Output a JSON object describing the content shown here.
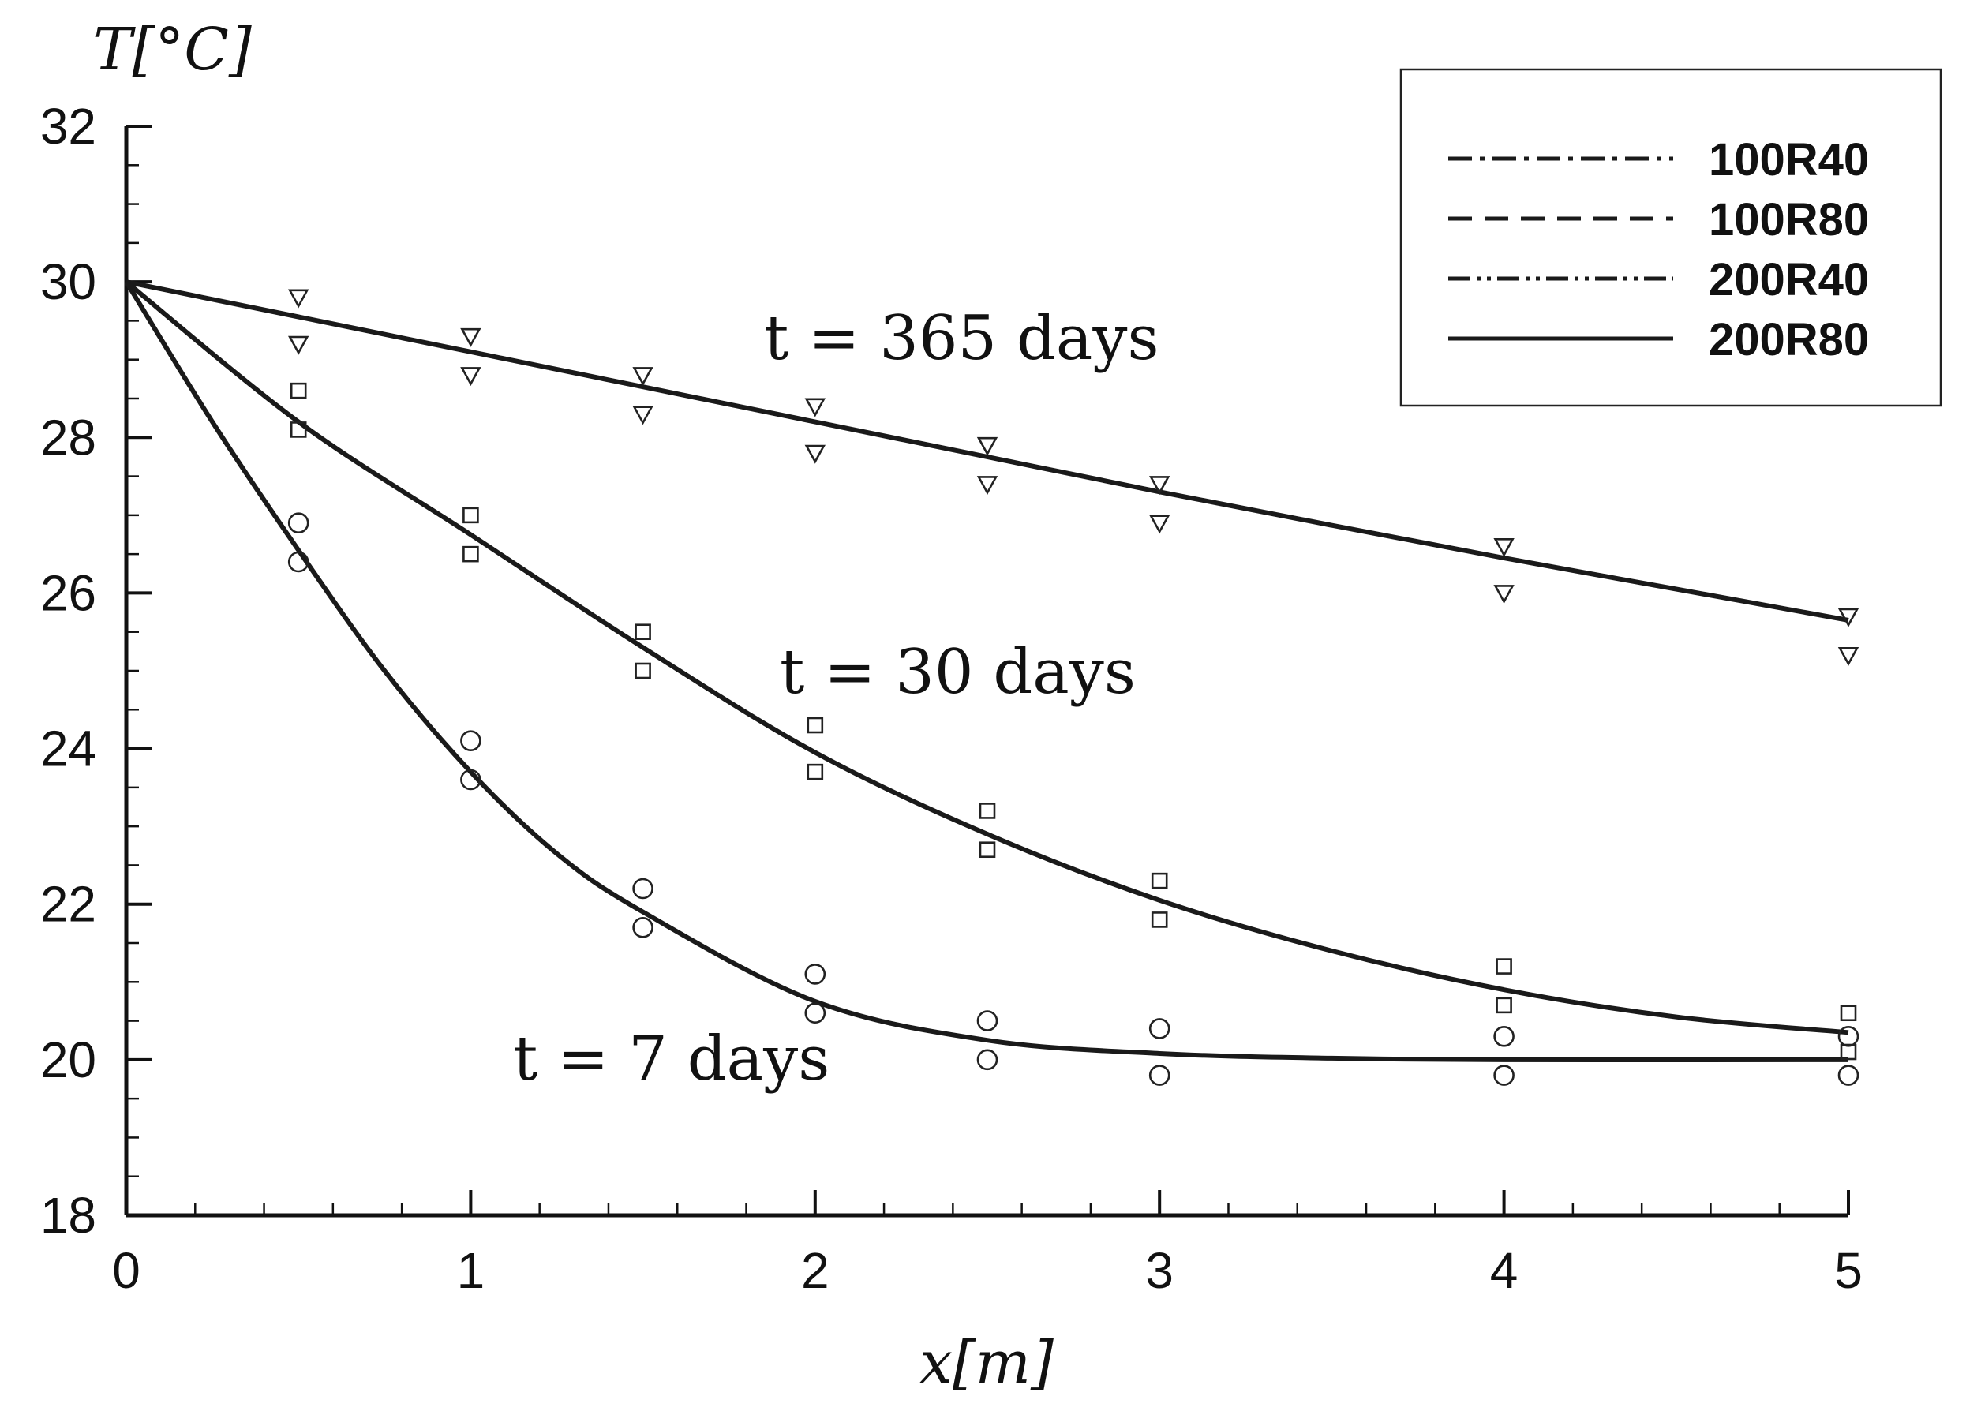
{
  "chart_data": {
    "type": "line",
    "xlabel": "x[m]",
    "ylabel": "T[°C]",
    "xlim": [
      0,
      5
    ],
    "ylim": [
      18,
      32
    ],
    "xticks": [
      0,
      1,
      2,
      3,
      4,
      5
    ],
    "yticks": [
      18,
      20,
      22,
      24,
      26,
      28,
      30,
      32
    ],
    "grid": false,
    "legend_position": "top-right",
    "legend": [
      {
        "label": "100R40",
        "style": "dash-dot"
      },
      {
        "label": "100R80",
        "style": "dashed"
      },
      {
        "label": "200R40",
        "style": "dash-dot-dot"
      },
      {
        "label": "200R80",
        "style": "solid"
      }
    ],
    "annotations": [
      "t = 365 days",
      "t = 30 days",
      "t = 7 days"
    ],
    "curves": [
      {
        "group": "t = 365 days",
        "x": [
          0,
          0.5,
          1,
          1.5,
          2,
          2.5,
          3,
          3.5,
          4,
          4.5,
          5
        ],
        "y": [
          30.0,
          29.55,
          29.1,
          28.65,
          28.2,
          27.75,
          27.3,
          26.87,
          26.45,
          26.05,
          25.65
        ]
      },
      {
        "group": "t = 30 days",
        "x": [
          0,
          0.5,
          1,
          1.5,
          2,
          2.5,
          3,
          3.5,
          4,
          4.5,
          5
        ],
        "y": [
          30.0,
          28.2,
          26.75,
          25.3,
          23.95,
          22.9,
          22.05,
          21.4,
          20.9,
          20.55,
          20.35
        ]
      },
      {
        "group": "t = 7 days",
        "x": [
          0,
          0.25,
          0.5,
          0.75,
          1,
          1.25,
          1.5,
          2,
          2.5,
          3,
          3.5,
          4,
          5
        ],
        "y": [
          30.0,
          28.2,
          26.55,
          25.0,
          23.7,
          22.65,
          21.9,
          20.75,
          20.25,
          20.08,
          20.02,
          20.0,
          20.0
        ]
      }
    ],
    "markers": [
      {
        "group": "t = 365 days",
        "symbol": "triangle-down",
        "x": [
          0.5,
          0.5,
          1,
          1,
          1.5,
          1.5,
          2,
          2,
          2.5,
          2.5,
          3,
          3,
          4,
          4,
          5,
          5
        ],
        "y": [
          29.8,
          29.2,
          29.3,
          28.8,
          28.8,
          28.3,
          28.4,
          27.8,
          27.9,
          27.4,
          27.4,
          26.9,
          26.6,
          26.0,
          25.7,
          25.2
        ]
      },
      {
        "group": "t = 30 days",
        "symbol": "square",
        "x": [
          0.5,
          0.5,
          1,
          1,
          1.5,
          1.5,
          2,
          2,
          2.5,
          2.5,
          3,
          3,
          4,
          4,
          5,
          5
        ],
        "y": [
          28.6,
          28.1,
          27.0,
          26.5,
          25.5,
          25.0,
          24.3,
          23.7,
          23.2,
          22.7,
          22.3,
          21.8,
          21.2,
          20.7,
          20.6,
          20.1
        ]
      },
      {
        "group": "t = 7 days",
        "symbol": "circle",
        "x": [
          0.5,
          0.5,
          1,
          1,
          1.5,
          1.5,
          2,
          2,
          2.5,
          2.5,
          3,
          3,
          4,
          4,
          5,
          5
        ],
        "y": [
          26.9,
          26.4,
          24.1,
          23.6,
          22.2,
          21.7,
          21.1,
          20.6,
          20.5,
          20.0,
          20.4,
          19.8,
          20.3,
          19.8,
          20.3,
          19.8
        ]
      }
    ]
  }
}
